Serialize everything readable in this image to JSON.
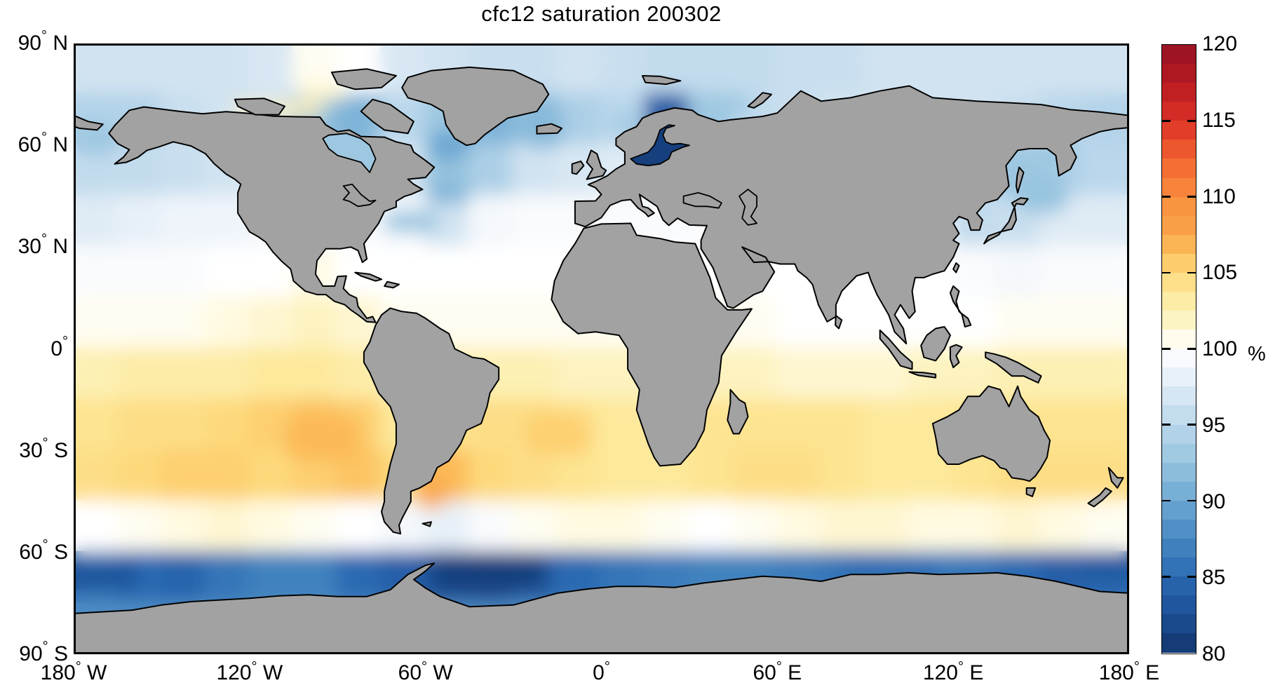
{
  "title": "cfc12 saturation 200302",
  "colorbar": {
    "unit_label": "%",
    "min": 80,
    "max": 120,
    "band_step": 1.25,
    "tick_values": [
      120,
      115,
      110,
      105,
      100,
      95,
      90,
      85,
      80
    ],
    "stops": [
      [
        80,
        "#12366b"
      ],
      [
        82.5,
        "#1c4f97"
      ],
      [
        85,
        "#2b6ab2"
      ],
      [
        87.5,
        "#4788c1"
      ],
      [
        90,
        "#6ea8d3"
      ],
      [
        92.5,
        "#97c4df"
      ],
      [
        95,
        "#bad7eb"
      ],
      [
        97,
        "#d8e7f3"
      ],
      [
        98.5,
        "#eef4fa"
      ],
      [
        100,
        "#ffffff"
      ],
      [
        100.8,
        "#fffbe8"
      ],
      [
        102,
        "#fdf3c0"
      ],
      [
        103.5,
        "#fde99c"
      ],
      [
        105,
        "#fdd97c"
      ],
      [
        106.5,
        "#fcba57"
      ],
      [
        108,
        "#f9a048"
      ],
      [
        110,
        "#f98f3e"
      ],
      [
        112.5,
        "#f2642f"
      ],
      [
        115,
        "#dd3026"
      ],
      [
        117.5,
        "#b61a20"
      ],
      [
        120,
        "#971226"
      ]
    ]
  },
  "axes": {
    "lat_ticks": [
      {
        "label": "90",
        "suffix": "N",
        "lat": 90
      },
      {
        "label": "60",
        "suffix": "N",
        "lat": 60
      },
      {
        "label": "30",
        "suffix": "N",
        "lat": 30
      },
      {
        "label": "0",
        "suffix": "",
        "lat": 0
      },
      {
        "label": "30",
        "suffix": "S",
        "lat": -30
      },
      {
        "label": "60",
        "suffix": "S",
        "lat": -60
      },
      {
        "label": "90",
        "suffix": "S",
        "lat": -90
      }
    ],
    "lon_ticks": [
      {
        "label": "180",
        "suffix": "W",
        "lon": -180
      },
      {
        "label": "120",
        "suffix": "W",
        "lon": -120
      },
      {
        "label": "60",
        "suffix": "W",
        "lon": -60
      },
      {
        "label": "0",
        "suffix": "",
        "lon": 0
      },
      {
        "label": "60",
        "suffix": "E",
        "lon": 60
      },
      {
        "label": "120",
        "suffix": "E",
        "lon": 120
      },
      {
        "label": "180",
        "suffix": "E",
        "lon": 180
      }
    ]
  },
  "land_color": "#a2a2a2",
  "coast_color": "#000000",
  "chart_data": {
    "type": "heatmap",
    "title": "cfc12 saturation 200302",
    "units": "%",
    "value_range": [
      80,
      120
    ],
    "grid": {
      "lon_start": -180,
      "lon_step": 15,
      "lat_start": 90,
      "lat_step": -15,
      "cols": 24,
      "rows": 12
    },
    "values": [
      [
        96.5,
        96.5,
        96.5,
        96.5,
        97,
        100.5,
        100,
        97,
        96.5,
        96,
        96,
        96.5,
        96,
        95.5,
        95.5,
        95.5,
        96,
        96,
        96.5,
        96.5,
        96.5,
        96.5,
        96.5,
        96.5
      ],
      [
        94.5,
        94.5,
        96,
        96.5,
        96.5,
        92,
        91,
        95,
        93,
        91,
        92,
        94,
        95,
        84,
        93,
        95.5,
        96,
        96.5,
        96.5,
        96.5,
        96.5,
        96,
        95,
        94.5
      ],
      [
        95.5,
        95.5,
        96,
        96.5,
        97,
        97.5,
        98,
        97,
        92.5,
        94,
        96.5,
        97,
        97.5,
        96,
        97,
        97.5,
        98,
        98,
        98,
        98,
        94,
        93,
        94.5,
        95
      ],
      [
        97.5,
        98,
        98.5,
        98.5,
        99,
        99.5,
        99.5,
        99,
        96.5,
        99,
        99.5,
        99.5,
        99.5,
        99.5,
        99.5,
        99.5,
        99.5,
        99.5,
        99.5,
        99,
        95.5,
        96,
        97.5,
        97.5
      ],
      [
        99.5,
        99.5,
        99.5,
        100,
        100,
        100.8,
        100,
        100,
        100,
        100,
        100,
        100,
        100,
        100,
        100,
        100,
        100,
        100,
        100,
        100,
        99.5,
        99,
        99.5,
        99.5
      ],
      [
        100.5,
        100.5,
        100.5,
        101,
        101.5,
        102,
        101.5,
        100.5,
        100.5,
        100.5,
        100.5,
        100.5,
        100.5,
        100.5,
        100.5,
        100.5,
        100,
        100,
        100,
        100,
        100,
        100.5,
        100.5,
        100.5
      ],
      [
        102.5,
        103,
        103,
        103,
        103.5,
        103.5,
        103,
        102,
        102.5,
        102.5,
        102.5,
        102,
        102,
        102,
        102,
        102,
        101.5,
        101.5,
        101.5,
        102,
        102,
        102.5,
        102.5,
        102.5
      ],
      [
        104,
        104.5,
        104.5,
        105,
        105.5,
        106,
        105.5,
        103.5,
        104,
        104.5,
        104.5,
        104,
        103.5,
        103.5,
        104,
        104,
        104,
        104,
        103.5,
        103.5,
        104,
        104,
        104,
        104
      ],
      [
        104.5,
        105,
        105.5,
        105.5,
        105,
        105.5,
        106,
        105,
        106.5,
        105,
        104.5,
        104,
        103.5,
        103.5,
        104,
        104.5,
        104.5,
        104,
        103.5,
        103.5,
        104,
        104.5,
        104.5,
        104.5
      ],
      [
        100,
        100.5,
        101,
        101.5,
        101,
        100.5,
        100,
        99,
        98,
        99.5,
        100.5,
        101,
        101,
        100.5,
        100,
        100.5,
        101,
        101.5,
        101.5,
        101,
        101,
        101.5,
        101,
        100.5
      ],
      [
        86,
        85,
        84.5,
        86,
        87,
        87,
        85,
        84,
        82.5,
        82,
        84,
        85,
        86,
        86.5,
        87,
        87,
        86.5,
        86,
        86.5,
        87,
        86,
        85,
        84,
        84.5
      ],
      [
        88,
        88,
        88,
        88,
        88,
        88,
        88,
        88,
        88,
        88,
        88,
        88,
        88,
        88,
        88,
        88,
        88,
        88,
        88,
        88,
        88,
        88,
        88,
        88
      ]
    ],
    "anomalies": [
      {
        "lon": -172,
        "lat": 62,
        "dlon": 14,
        "dlat": 10,
        "value": 93
      },
      {
        "lon": -110,
        "lat": 70.5,
        "dlon": 30,
        "dlat": 4,
        "value": 102.5
      },
      {
        "lon": -95,
        "lat": 76,
        "dlon": 16,
        "dlat": 5,
        "value": 101.5
      },
      {
        "lon": -85,
        "lat": 58,
        "dlon": 14,
        "dlat": 12,
        "value": 91.5
      },
      {
        "lon": -52,
        "lat": 60,
        "dlon": 14,
        "dlat": 9,
        "value": 90
      },
      {
        "lon": -20,
        "lat": 66,
        "dlon": 14,
        "dlat": 14,
        "value": 91.5
      },
      {
        "lon": 8,
        "lat": 66,
        "dlon": 8,
        "dlat": 8,
        "value": 93.5
      },
      {
        "lon": 20,
        "lat": 62,
        "dlon": 9,
        "dlat": 8,
        "value": 81
      },
      {
        "lon": 45,
        "lat": 72,
        "dlon": 12,
        "dlat": 6,
        "value": 93
      },
      {
        "lon": -65,
        "lat": 37.5,
        "dlon": 18,
        "dlat": 6,
        "value": 92.5
      },
      {
        "lon": -52,
        "lat": 46,
        "dlon": 14,
        "dlat": 7,
        "value": 91.5
      },
      {
        "lon": 150,
        "lat": 46,
        "dlon": 18,
        "dlat": 12,
        "value": 92.5
      },
      {
        "lon": 152,
        "lat": 57,
        "dlon": 18,
        "dlat": 8,
        "value": 93
      },
      {
        "lon": -95,
        "lat": -26,
        "dlon": 26,
        "dlat": 14,
        "value": 106.5
      },
      {
        "lon": -58,
        "lat": -42,
        "dlon": 10,
        "dlat": 10,
        "value": 107.5
      },
      {
        "lon": -15,
        "lat": -25,
        "dlon": 22,
        "dlat": 12,
        "value": 105.5
      },
      {
        "lon": -38,
        "lat": -66,
        "dlon": 38,
        "dlat": 10,
        "value": 81
      },
      {
        "lon": -170,
        "lat": -67,
        "dlon": 24,
        "dlat": 8,
        "value": 83
      },
      {
        "lon": 100,
        "lat": -65,
        "dlon": 34,
        "dlat": 6,
        "value": 85
      },
      {
        "lon": 172,
        "lat": -64,
        "dlon": 16,
        "dlat": 8,
        "value": 83.5
      }
    ],
    "named_seas": {
      "baltic_sea_value": 81,
      "hudson_bay_value": 93
    }
  }
}
